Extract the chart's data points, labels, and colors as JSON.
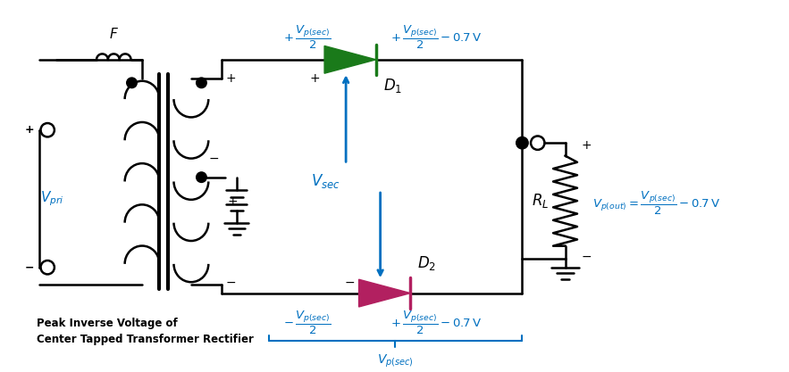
{
  "bg_color": "#ffffff",
  "line_color": "#000000",
  "blue_color": "#0070C0",
  "green_diode_color": "#1a7a1a",
  "red_diode_color": "#B22060",
  "fig_width": 8.83,
  "fig_height": 4.17,
  "dpi": 100
}
